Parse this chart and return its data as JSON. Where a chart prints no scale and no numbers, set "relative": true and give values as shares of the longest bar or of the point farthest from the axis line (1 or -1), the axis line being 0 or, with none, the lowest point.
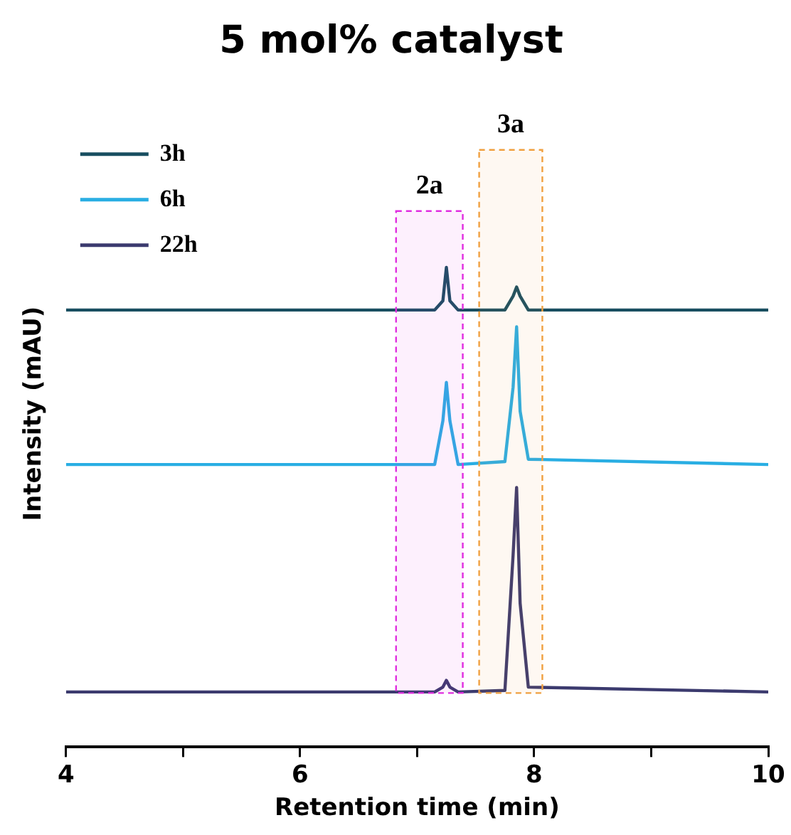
{
  "chart_data": {
    "type": "line",
    "title": "5 mol% catalyst",
    "xlabel": "Retention time (min)",
    "ylabel": "Intensity (mAU)",
    "relative": true,
    "xlim": [
      4,
      10
    ],
    "xticks": [
      4,
      {
        "value": 5,
        "label": null
      },
      6,
      {
        "value": 7,
        "label": null
      },
      8,
      {
        "value": 9,
        "label": null
      },
      10
    ],
    "legend": "top left",
    "marker": "none",
    "grid": false,
    "series": [
      {
        "name": "3h",
        "color": "#184e60",
        "x": [
          4,
          6.5,
          7.15,
          7.22,
          7.25,
          7.28,
          7.35,
          7.75,
          7.82,
          7.85,
          7.88,
          7.95,
          10
        ],
        "values": [
          0.911,
          0.911,
          0.911,
          0.93,
          1.0,
          0.93,
          0.911,
          0.911,
          0.94,
          0.959,
          0.94,
          0.911,
          0.911
        ]
      },
      {
        "name": "6h",
        "color": "#29aee3",
        "x": [
          4,
          6.5,
          7.15,
          7.22,
          7.25,
          7.28,
          7.35,
          7.75,
          7.82,
          7.85,
          7.88,
          7.95,
          10
        ],
        "values": [
          0.589,
          0.589,
          0.589,
          0.68,
          0.76,
          0.68,
          0.589,
          0.595,
          0.75,
          0.876,
          0.7,
          0.6,
          0.589
        ]
      },
      {
        "name": "22h",
        "color": "#3b3a6e",
        "x": [
          4,
          6.5,
          7.15,
          7.22,
          7.25,
          7.28,
          7.35,
          7.75,
          7.82,
          7.85,
          7.88,
          7.95,
          10
        ],
        "values": [
          0.115,
          0.115,
          0.115,
          0.125,
          0.139,
          0.125,
          0.115,
          0.118,
          0.4,
          0.541,
          0.3,
          0.125,
          0.115
        ]
      }
    ],
    "bands": [
      {
        "axis": "x",
        "from": 6.82,
        "to": 7.39,
        "label": "2a",
        "color": "#e02de0"
      },
      {
        "axis": "x",
        "from": 7.53,
        "to": 8.07,
        "label": "3a",
        "color": "#f0a040"
      }
    ]
  }
}
